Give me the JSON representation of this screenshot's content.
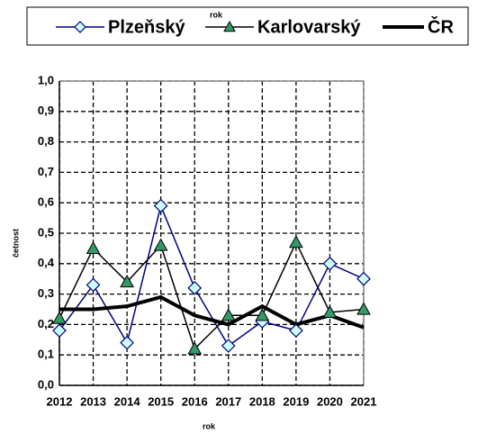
{
  "chart_data": {
    "type": "line",
    "x_label": "rok",
    "y_label": "četnost",
    "annotations": [
      "rok"
    ],
    "categories": [
      "2012",
      "2013",
      "2014",
      "2015",
      "2016",
      "2017",
      "2018",
      "2019",
      "2020",
      "2021"
    ],
    "series": [
      {
        "name": "Plzeňský",
        "color": "#000080",
        "marker": "diamond",
        "marker_color": "#ccffff",
        "line_width": 1.5,
        "values": [
          0.18,
          0.33,
          0.14,
          0.59,
          0.32,
          0.13,
          0.21,
          0.18,
          0.4,
          0.35
        ]
      },
      {
        "name": "Karlovarský",
        "color": "#000000",
        "marker": "triangle",
        "marker_color": "#339966",
        "line_width": 1.5,
        "values": [
          0.22,
          0.45,
          0.34,
          0.46,
          0.12,
          0.23,
          0.23,
          0.47,
          0.24,
          0.25
        ]
      },
      {
        "name": "ČR",
        "color": "#000000",
        "marker": "none",
        "line_width": 4,
        "values": [
          0.25,
          0.25,
          0.26,
          0.29,
          0.23,
          0.2,
          0.26,
          0.2,
          0.23,
          0.19
        ]
      }
    ],
    "ylim": [
      0,
      1
    ],
    "yticks": [
      {
        "value": 0,
        "label": "0,0"
      },
      {
        "value": 0.1,
        "label": "0,1"
      },
      {
        "value": 0.2,
        "label": "0,2"
      },
      {
        "value": 0.3,
        "label": "0,3"
      },
      {
        "value": 0.4,
        "label": "0,4"
      },
      {
        "value": 0.5,
        "label": "0,5"
      },
      {
        "value": 0.6,
        "label": "0,6"
      },
      {
        "value": 0.7,
        "label": "0,7"
      },
      {
        "value": 0.8,
        "label": "0,8"
      },
      {
        "value": 0.9,
        "label": "0,9"
      },
      {
        "value": 1,
        "label": "1,0"
      }
    ],
    "grid": true,
    "legend": "top"
  }
}
